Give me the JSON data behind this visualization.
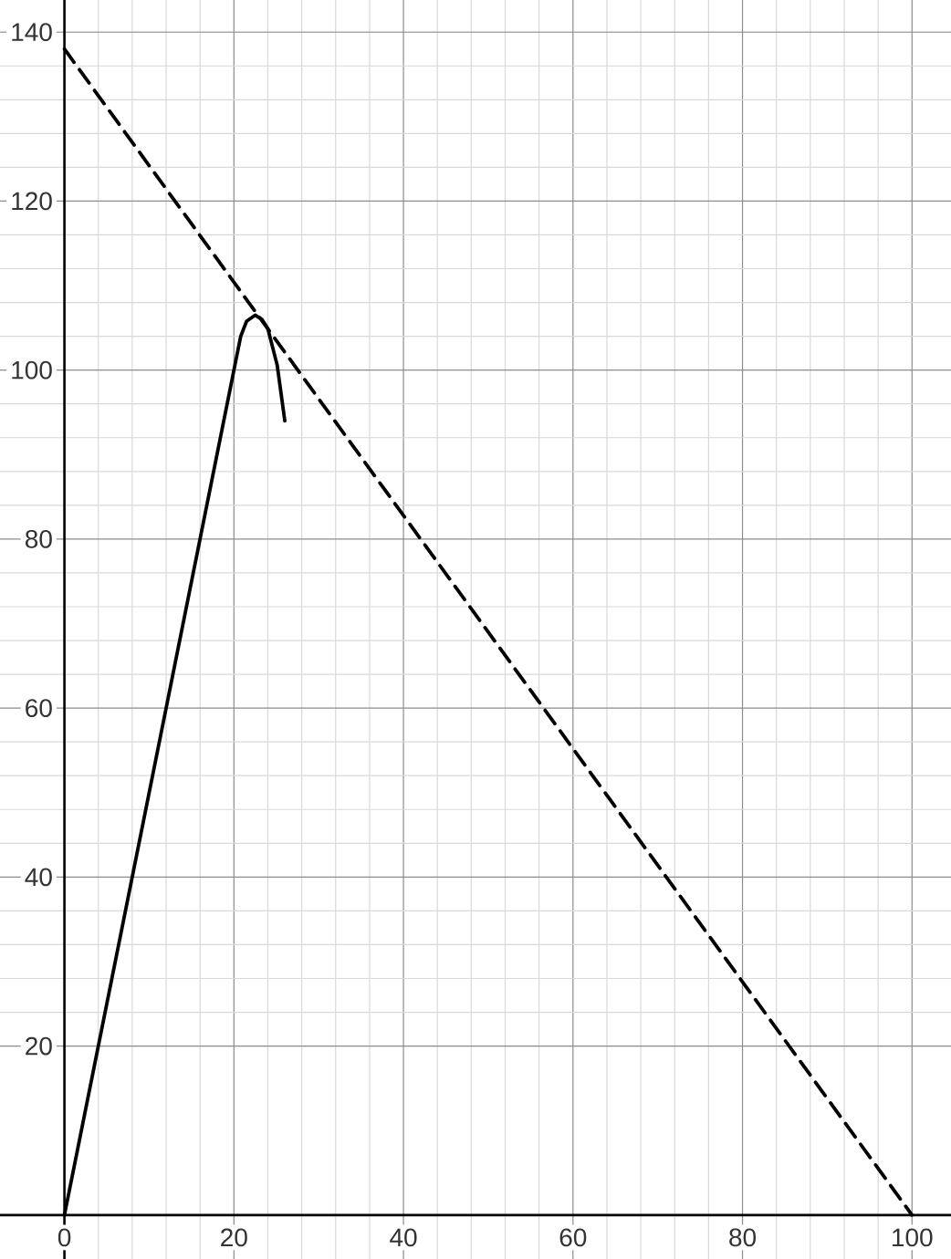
{
  "chart_data": {
    "type": "line",
    "xlim": [
      -7.6,
      104.6
    ],
    "ylim": [
      -5.2,
      143.8
    ],
    "xticks": [
      0,
      20,
      40,
      60,
      80,
      100
    ],
    "yticks": [
      20,
      40,
      60,
      80,
      100,
      120,
      140
    ],
    "grid": true,
    "series": [
      {
        "x": [
          0,
          20,
          20.8,
          21.5,
          22.5,
          23.3,
          24,
          25.1,
          26
        ],
        "values": [
          0,
          100,
          104,
          105.8,
          106.5,
          106,
          104.9,
          100.6,
          94
        ],
        "color": "#000000",
        "line_style": "solid"
      },
      {
        "x": [
          0,
          100
        ],
        "values": [
          138,
          0
        ],
        "color": "#000000",
        "line_style": "dashed"
      }
    ]
  }
}
